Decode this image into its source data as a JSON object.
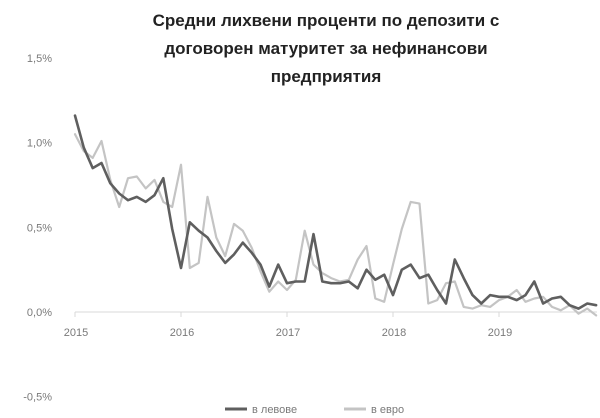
{
  "chart_data": {
    "type": "line",
    "title_lines": [
      "Средни лихвени проценти по депозити с",
      "договорен матуритет за нефинансови",
      "предприятия"
    ],
    "xlabel": "",
    "ylabel": "",
    "x_tick_labels": [
      "2015",
      "2016",
      "2017",
      "2018",
      "2019"
    ],
    "y_tick_labels": [
      "1,5%",
      "1,0%",
      "0,5%",
      "0,0%",
      "-0,5%"
    ],
    "y_ticks": [
      1.5,
      1.0,
      0.5,
      0.0,
      -0.5
    ],
    "ylim": [
      -0.5,
      1.5
    ],
    "x_range": [
      "2015-01",
      "2019-12"
    ],
    "grid": false,
    "legend_position": "bottom",
    "x": [
      "2015-01",
      "2015-02",
      "2015-03",
      "2015-04",
      "2015-05",
      "2015-06",
      "2015-07",
      "2015-08",
      "2015-09",
      "2015-10",
      "2015-11",
      "2015-12",
      "2016-01",
      "2016-02",
      "2016-03",
      "2016-04",
      "2016-05",
      "2016-06",
      "2016-07",
      "2016-08",
      "2016-09",
      "2016-10",
      "2016-11",
      "2016-12",
      "2017-01",
      "2017-02",
      "2017-03",
      "2017-04",
      "2017-05",
      "2017-06",
      "2017-07",
      "2017-08",
      "2017-09",
      "2017-10",
      "2017-11",
      "2017-12",
      "2018-01",
      "2018-02",
      "2018-03",
      "2018-04",
      "2018-05",
      "2018-06",
      "2018-07",
      "2018-08",
      "2018-09",
      "2018-10",
      "2018-11",
      "2018-12",
      "2019-01",
      "2019-02",
      "2019-03",
      "2019-04",
      "2019-05",
      "2019-06",
      "2019-07",
      "2019-08",
      "2019-09",
      "2019-10",
      "2019-11",
      "2019-12"
    ],
    "series": [
      {
        "name": "в левове",
        "color": "#5f5f5f",
        "values": [
          1.16,
          0.97,
          0.85,
          0.88,
          0.76,
          0.7,
          0.66,
          0.68,
          0.65,
          0.69,
          0.79,
          0.49,
          0.26,
          0.53,
          0.48,
          0.44,
          0.36,
          0.29,
          0.34,
          0.41,
          0.35,
          0.28,
          0.15,
          0.28,
          0.17,
          0.18,
          0.18,
          0.46,
          0.18,
          0.17,
          0.17,
          0.18,
          0.14,
          0.25,
          0.19,
          0.22,
          0.1,
          0.25,
          0.28,
          0.2,
          0.22,
          0.13,
          0.05,
          0.31,
          0.2,
          0.1,
          0.05,
          0.1,
          0.09,
          0.09,
          0.07,
          0.1,
          0.18,
          0.05,
          0.08,
          0.09,
          0.04,
          0.02,
          0.05,
          0.04
        ]
      },
      {
        "name": "в евро",
        "color": "#c4c4c4",
        "values": [
          1.05,
          0.95,
          0.91,
          1.01,
          0.78,
          0.62,
          0.79,
          0.8,
          0.73,
          0.78,
          0.65,
          0.62,
          0.87,
          0.26,
          0.29,
          0.68,
          0.44,
          0.33,
          0.52,
          0.48,
          0.38,
          0.24,
          0.12,
          0.18,
          0.13,
          0.19,
          0.48,
          0.28,
          0.23,
          0.2,
          0.18,
          0.19,
          0.31,
          0.39,
          0.08,
          0.06,
          0.28,
          0.49,
          0.65,
          0.64,
          0.05,
          0.07,
          0.17,
          0.18,
          0.03,
          0.02,
          0.04,
          0.03,
          0.07,
          0.09,
          0.13,
          0.06,
          0.08,
          0.09,
          0.03,
          0.01,
          0.04,
          -0.01,
          0.02,
          -0.02
        ]
      }
    ]
  }
}
